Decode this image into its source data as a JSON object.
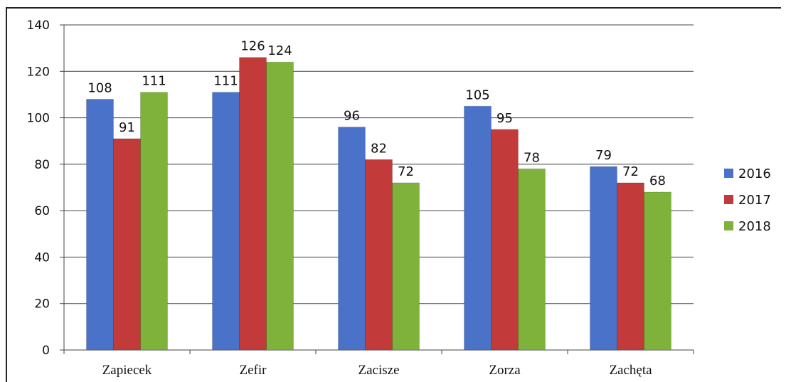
{
  "chart_data": {
    "type": "bar",
    "categories": [
      "Zapiecek",
      "Zefir",
      "Zacisze",
      "Zorza",
      "Zachęta"
    ],
    "series": [
      {
        "name": "2016",
        "values": [
          108,
          111,
          96,
          105,
          79
        ],
        "color": "#4a72c8"
      },
      {
        "name": "2017",
        "values": [
          91,
          126,
          82,
          95,
          72
        ],
        "color": "#c33a3a"
      },
      {
        "name": "2018",
        "values": [
          111,
          124,
          72,
          78,
          68
        ],
        "color": "#7fb23a"
      }
    ],
    "ylim": [
      0,
      140
    ],
    "yticks": [
      "0",
      "20",
      "40",
      "60",
      "80",
      "100",
      "120",
      "140"
    ],
    "grid": true,
    "legend_position": "right",
    "data_labels": true
  }
}
